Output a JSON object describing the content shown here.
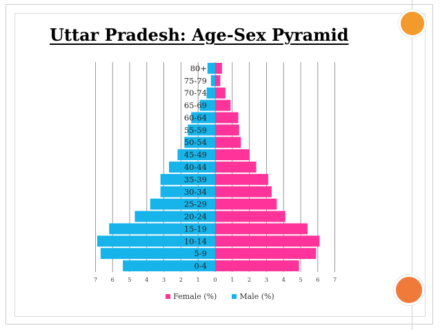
{
  "slide": {
    "title": "Uttar Pradesh: Age-Sex Pyramid"
  },
  "colors": {
    "female": "#ff3399",
    "male": "#16b4ea",
    "grid": "#7f7f7f",
    "accent_top": "#f39a2c",
    "accent_bottom": "#f07a3a"
  },
  "chart_data": {
    "type": "bar",
    "orientation": "horizontal-pyramid",
    "title": "",
    "categories": [
      "80+",
      "75-79",
      "70-74",
      "65-69",
      "60-64",
      "55-59",
      "50-54",
      "45-49",
      "40-44",
      "35-39",
      "30-34",
      "25-29",
      "20-24",
      "15-19",
      "10-14",
      "5-9",
      "0-4"
    ],
    "series": [
      {
        "name": "Female (%)",
        "side": "right",
        "values": [
          0.4,
          0.3,
          0.6,
          0.9,
          1.35,
          1.4,
          1.5,
          2.0,
          2.4,
          3.1,
          3.3,
          3.6,
          4.1,
          5.4,
          6.1,
          5.9,
          4.9
        ]
      },
      {
        "name": "Male (%)",
        "side": "left",
        "values": [
          0.45,
          0.25,
          0.5,
          0.9,
          1.4,
          1.6,
          1.8,
          2.2,
          2.7,
          3.2,
          3.2,
          3.8,
          4.7,
          6.2,
          6.9,
          6.7,
          5.4
        ]
      }
    ],
    "x_ticks_left": [
      "7",
      "6",
      "5",
      "4",
      "3",
      "2",
      "1"
    ],
    "x_ticks_right": [
      "0",
      "1",
      "2",
      "3",
      "4",
      "5",
      "6",
      "7"
    ],
    "xlim": [
      -7,
      7
    ],
    "grid": "vertical",
    "legend_position": "bottom"
  }
}
